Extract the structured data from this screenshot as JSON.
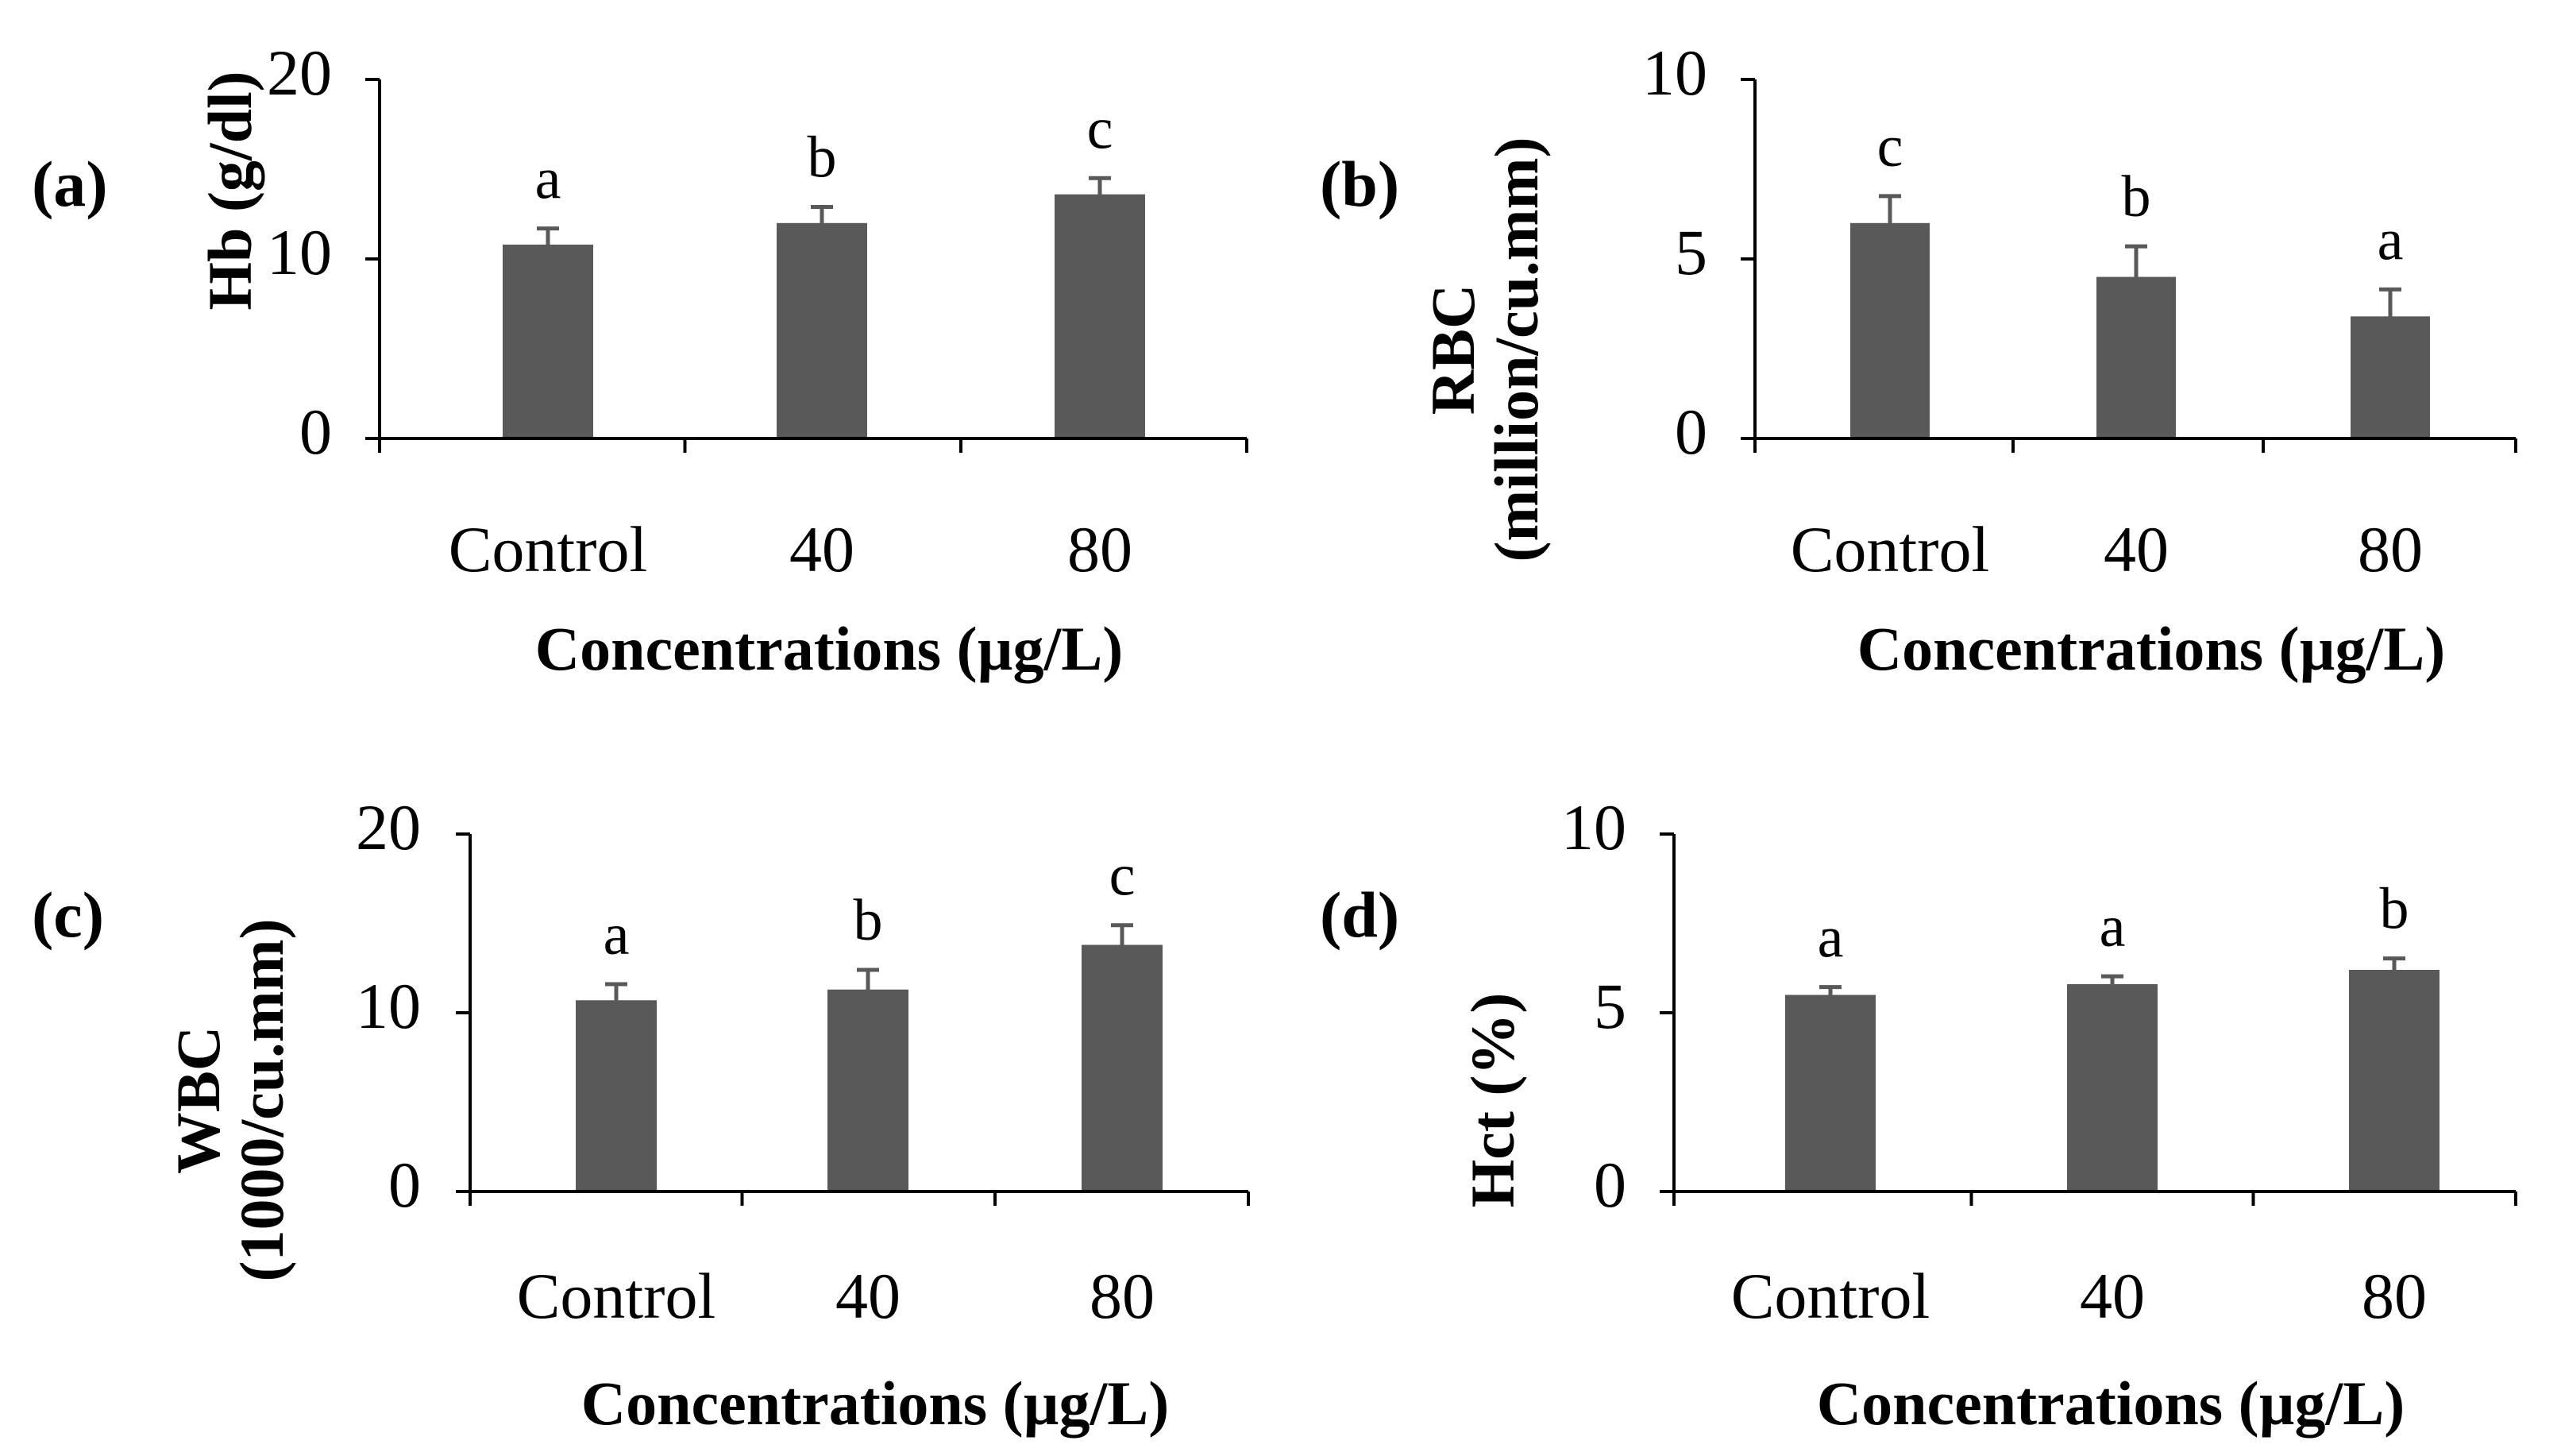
{
  "figure": {
    "bar_color": "#595959",
    "error_color": "#595959",
    "axis_color": "#000000",
    "text_color": "#000000"
  },
  "chart_data": [
    {
      "type": "bar",
      "panel_label": "(a)",
      "categories": [
        "Control",
        "40",
        "80"
      ],
      "values": [
        10.8,
        12.0,
        13.6
      ],
      "errors": [
        0.9,
        0.9,
        0.9
      ],
      "significance": [
        "a",
        "b",
        "c"
      ],
      "ylabel": [
        "Hb (g/dl)"
      ],
      "xlabel": "Concentrations (µg/L)",
      "ylim": [
        0,
        20
      ],
      "yticks": [
        "0",
        "10",
        "20"
      ],
      "ytick_values": [
        0,
        10,
        20
      ]
    },
    {
      "type": "bar",
      "panel_label": "(b)",
      "categories": [
        "Control",
        "40",
        "80"
      ],
      "values": [
        6.0,
        4.5,
        3.4
      ],
      "errors": [
        0.75,
        0.85,
        0.75
      ],
      "significance": [
        "c",
        "b",
        "a"
      ],
      "ylabel": [
        "RBC",
        "(million/cu.mm)"
      ],
      "xlabel": "Concentrations (µg/L)",
      "ylim": [
        0,
        10
      ],
      "yticks": [
        "0",
        "5",
        "10"
      ],
      "ytick_values": [
        0,
        5,
        10
      ]
    },
    {
      "type": "bar",
      "panel_label": "(c)",
      "categories": [
        "Control",
        "40",
        "80"
      ],
      "values": [
        10.7,
        11.3,
        13.8
      ],
      "errors": [
        0.9,
        1.1,
        1.1
      ],
      "significance": [
        "a",
        "b",
        "c"
      ],
      "ylabel": [
        "WBC",
        "(1000/cu.mm)"
      ],
      "xlabel": "Concentrations (µg/L)",
      "ylim": [
        0,
        20
      ],
      "yticks": [
        "0",
        "10",
        "20"
      ],
      "ytick_values": [
        0,
        10,
        20
      ]
    },
    {
      "type": "bar",
      "panel_label": "(d)",
      "categories": [
        "Control",
        "40",
        "80"
      ],
      "values": [
        5.5,
        5.8,
        6.2
      ],
      "errors": [
        0.22,
        0.22,
        0.32
      ],
      "significance": [
        "a",
        "a",
        "b"
      ],
      "ylabel": [
        "Hct (%)"
      ],
      "xlabel": "Concentrations (µg/L)",
      "ylim": [
        0,
        10
      ],
      "yticks": [
        "0",
        "5",
        "10"
      ],
      "ytick_values": [
        0,
        5,
        10
      ]
    }
  ]
}
